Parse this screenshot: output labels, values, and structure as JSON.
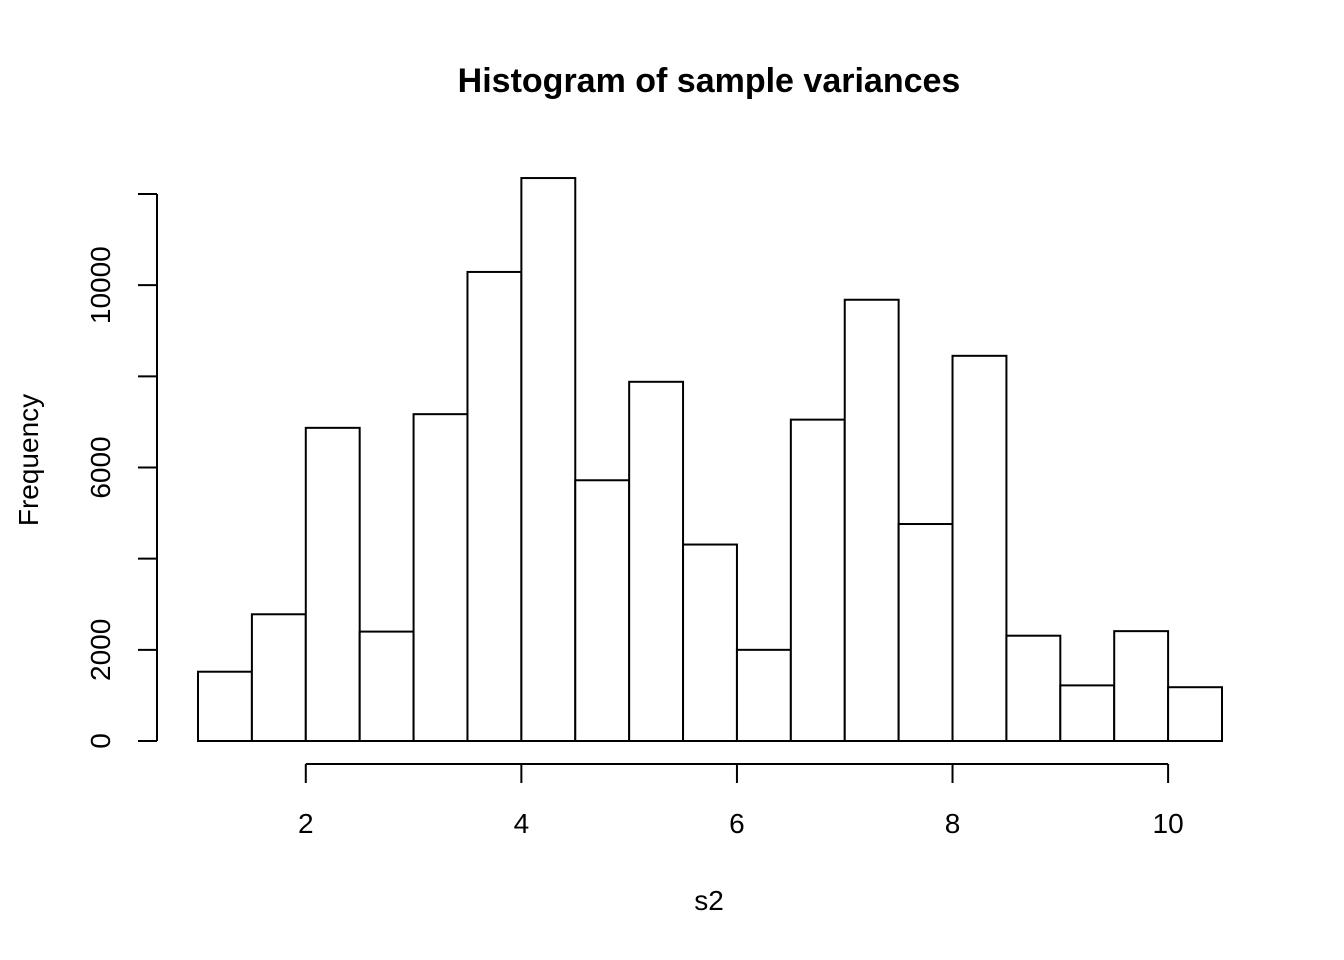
{
  "chart_data": {
    "type": "bar",
    "subtype": "histogram",
    "title": "Histogram of sample variances",
    "xlabel": "s2",
    "ylabel": "Frequency",
    "bins": [
      [
        1.0,
        1.5
      ],
      [
        1.5,
        2.0
      ],
      [
        2.0,
        2.5
      ],
      [
        2.5,
        3.0
      ],
      [
        3.0,
        3.5
      ],
      [
        3.5,
        4.0
      ],
      [
        4.0,
        4.5
      ],
      [
        4.5,
        5.0
      ],
      [
        5.0,
        5.5
      ],
      [
        5.5,
        6.0
      ],
      [
        6.0,
        6.5
      ],
      [
        6.5,
        7.0
      ],
      [
        7.0,
        7.5
      ],
      [
        7.5,
        8.0
      ],
      [
        8.0,
        8.5
      ],
      [
        8.5,
        9.0
      ],
      [
        9.0,
        9.5
      ],
      [
        9.5,
        10.0
      ],
      [
        10.0,
        10.5
      ]
    ],
    "values": [
      1520,
      2780,
      6870,
      2400,
      7170,
      10290,
      12350,
      5720,
      7880,
      4310,
      2000,
      7050,
      9680,
      4760,
      8450,
      2310,
      1220,
      2410,
      1180
    ],
    "xlim": [
      1,
      10.5
    ],
    "ylim": [
      0,
      12000
    ],
    "x_ticks": [
      2,
      4,
      6,
      8,
      10
    ],
    "x_tick_labels": [
      "2",
      "4",
      "6",
      "8",
      "10"
    ],
    "y_ticks": [
      0,
      2000,
      4000,
      6000,
      8000,
      10000,
      12000
    ],
    "y_tick_labels": [
      "0",
      "2000",
      "",
      "6000",
      "",
      "10000",
      ""
    ],
    "grid": false,
    "legend": "none"
  }
}
